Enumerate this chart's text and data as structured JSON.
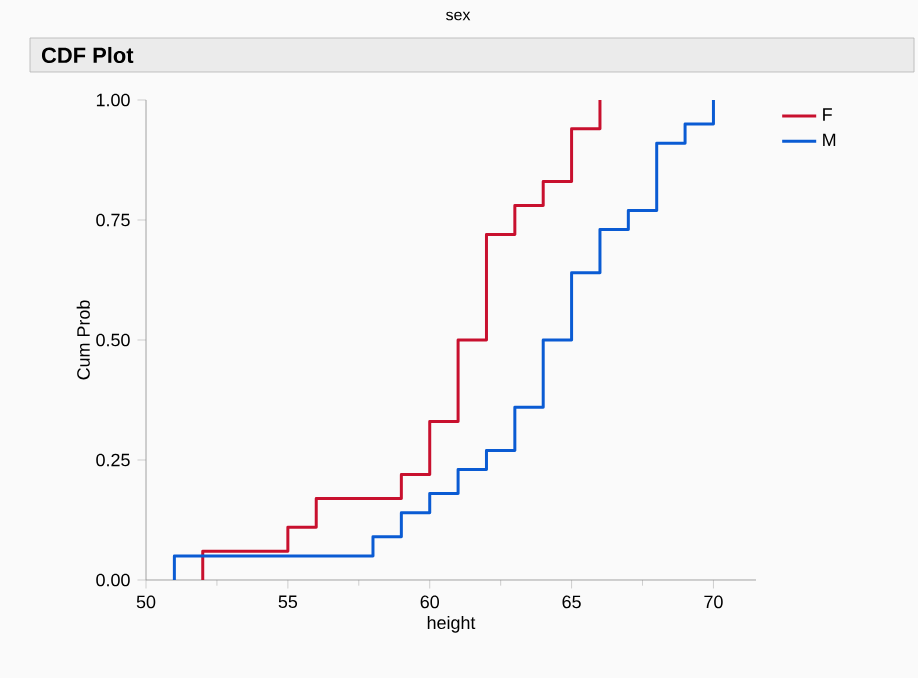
{
  "chart_data": {
    "type": "step",
    "title": "CDF Plot",
    "legend_title": "sex",
    "xlabel": "height",
    "ylabel": "Cum Prob",
    "xlim": [
      50,
      71.5
    ],
    "xticks": [
      50,
      55,
      60,
      65,
      70
    ],
    "ylim": [
      0,
      1
    ],
    "yticks": [
      {
        "value": 0,
        "label": "0.00"
      },
      {
        "value": 0.25,
        "label": "0.25"
      },
      {
        "value": 0.5,
        "label": "0.50"
      },
      {
        "value": 0.75,
        "label": "0.75"
      },
      {
        "value": 1,
        "label": "1.00"
      }
    ],
    "legend": "right",
    "grid": false,
    "marker": "none",
    "line_style": "solid",
    "series": [
      {
        "name": "F",
        "color": "#c8102e",
        "x": [
          52,
          52,
          55,
          56,
          59,
          60,
          61,
          62,
          63,
          64,
          65,
          66
        ],
        "values": [
          0,
          0.06,
          0.11,
          0.17,
          0.22,
          0.33,
          0.5,
          0.72,
          0.78,
          0.83,
          0.94,
          1
        ]
      },
      {
        "name": "M",
        "color": "#0a5bd3",
        "x": [
          51,
          51,
          58,
          59,
          60,
          61,
          62,
          63,
          64,
          65,
          66,
          67,
          68,
          69,
          70
        ],
        "values": [
          0,
          0.05,
          0.09,
          0.14,
          0.18,
          0.23,
          0.27,
          0.36,
          0.5,
          0.64,
          0.73,
          0.77,
          0.91,
          0.95,
          1
        ]
      }
    ]
  }
}
